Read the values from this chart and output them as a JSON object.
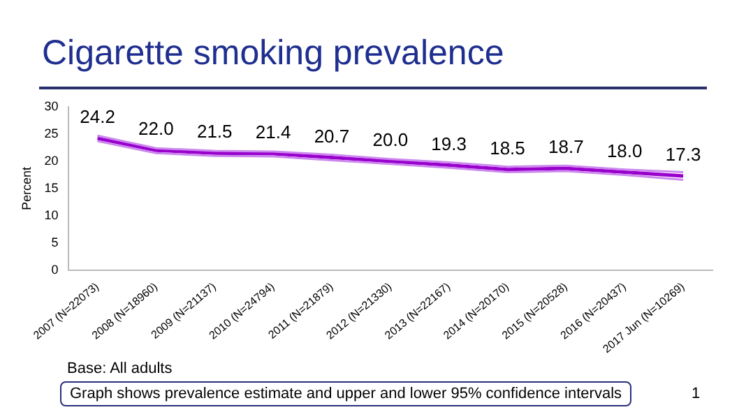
{
  "chart_data": {
    "type": "line",
    "title": "Cigarette smoking prevalence",
    "ylabel": "Percent",
    "categories": [
      "2007 (N=22073)",
      "2008 (N=18960)",
      "2009 (N=21137)",
      "2010 (N=24794)",
      "2011 (N=21879)",
      "2012 (N=21330)",
      "2013 (N=22167)",
      "2014 (N=20170)",
      "2015 (N=20528)",
      "2016 (N=20437)",
      "2017 Jun (N=10269)"
    ],
    "series": [
      {
        "color": "#cc88ee",
        "values": [
          24.7,
          22.4,
          21.9,
          21.8,
          21.2,
          20.4,
          19.8,
          19.0,
          19.2,
          18.5,
          18.0
        ]
      },
      {
        "color": "#cc88ee",
        "values": [
          23.7,
          21.5,
          21.0,
          20.9,
          20.2,
          19.5,
          18.8,
          18.0,
          18.2,
          17.5,
          16.6
        ]
      },
      {
        "color": "#9900cc",
        "values": [
          24.2,
          22.0,
          21.5,
          21.4,
          20.7,
          20.0,
          19.3,
          18.5,
          18.7,
          18.0,
          17.3
        ],
        "value_labels": [
          "24.2",
          "22.0",
          "21.5",
          "21.4",
          "20.7",
          "20.0",
          "19.3",
          "18.5",
          "18.7",
          "18.0",
          "17.3"
        ]
      }
    ],
    "ylim": [
      0,
      30
    ],
    "yticks": [
      0,
      5,
      10,
      15,
      20,
      25,
      30
    ],
    "grid": false,
    "legend": false,
    "marker": "none",
    "line_style": "solid",
    "annotations": [
      "Base: All adults",
      "Graph shows prevalence estimate and upper and lower 95% confidence intervals",
      "1"
    ]
  }
}
